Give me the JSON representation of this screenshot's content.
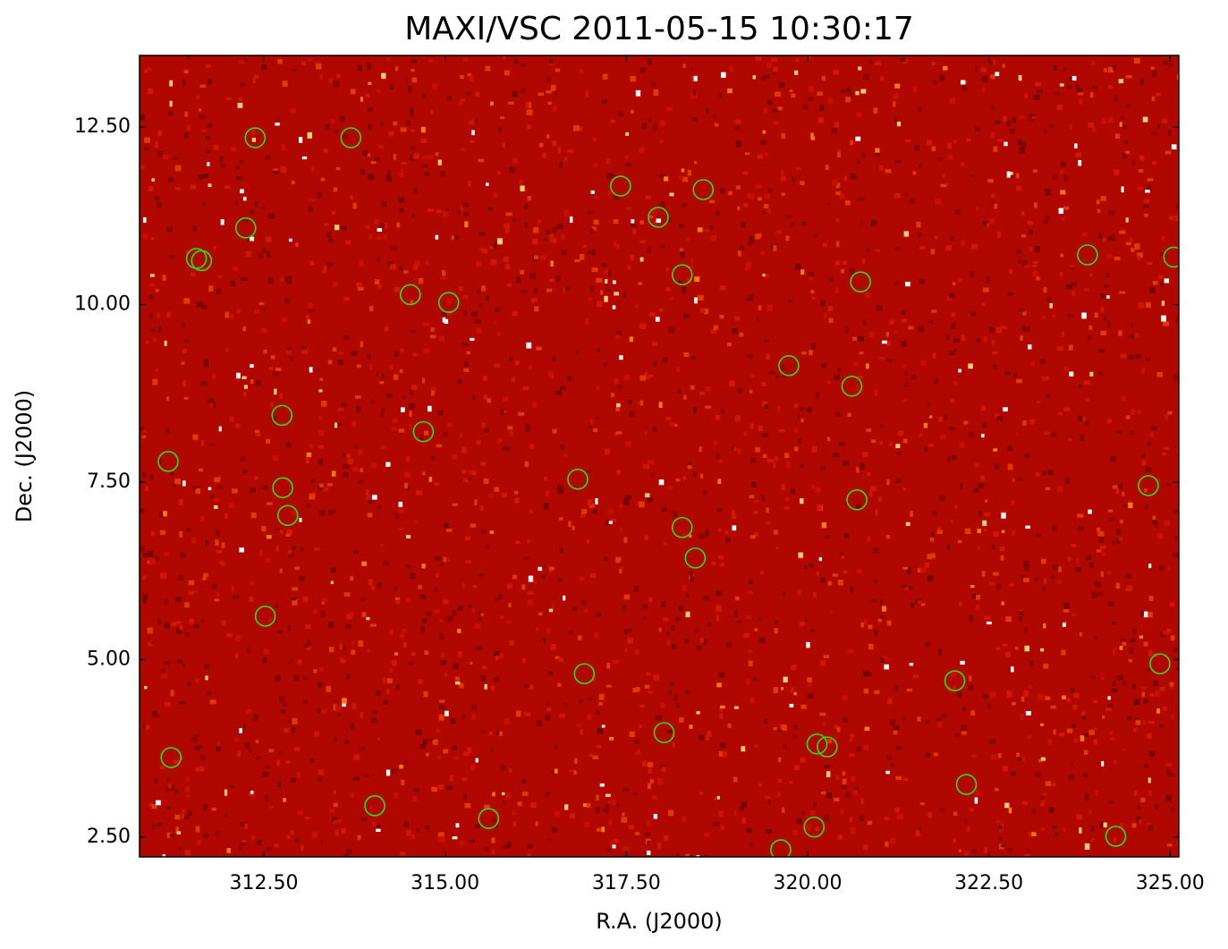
{
  "chart_data": {
    "type": "scatter",
    "title": "MAXI/VSC 2011-05-15 10:30:17",
    "x_label": "R.A. (J2000)",
    "y_label": "Dec. (J2000)",
    "color": "#33dd11",
    "xlim": [
      310.785,
      325.12
    ],
    "ylim": [
      2.22,
      13.51
    ],
    "xticks": [
      {
        "value": 312.5,
        "label": "312.50"
      },
      {
        "value": 315,
        "label": "315.00"
      },
      {
        "value": 317.5,
        "label": "317.50"
      },
      {
        "value": 320,
        "label": "320.00"
      },
      {
        "value": 322.5,
        "label": "322.50"
      },
      {
        "value": 325,
        "label": "325.00"
      }
    ],
    "yticks": [
      {
        "value": 2.5,
        "label": "2.50"
      },
      {
        "value": 5,
        "label": "5.00"
      },
      {
        "value": 7.5,
        "label": "7.50"
      },
      {
        "value": 10,
        "label": "10.00"
      },
      {
        "value": 12.5,
        "label": "12.50"
      }
    ],
    "x": [
      312.38,
      313.7,
      312.25,
      311.57,
      311.64,
      314.52,
      315.05,
      317.42,
      317.94,
      318.56,
      318.27,
      320.73,
      323.86,
      325.05,
      319.74,
      320.61,
      312.75,
      314.7,
      311.18,
      312.76,
      312.83,
      316.83,
      320.68,
      324.7,
      318.27,
      318.45,
      312.52,
      316.92,
      324.86,
      322.03,
      311.22,
      318.02,
      320.13,
      320.27,
      322.19,
      314.03,
      315.6,
      320.09,
      319.63,
      324.25
    ],
    "values": [
      12.35,
      12.35,
      11.08,
      10.65,
      10.62,
      10.14,
      10.03,
      11.67,
      11.23,
      11.62,
      10.42,
      10.32,
      10.7,
      10.67,
      9.14,
      8.85,
      8.44,
      8.21,
      7.79,
      7.42,
      7.03,
      7.54,
      7.25,
      7.45,
      6.86,
      6.43,
      5.61,
      4.8,
      4.94,
      4.7,
      3.62,
      3.97,
      3.81,
      3.77,
      3.24,
      2.94,
      2.76,
      2.64,
      2.32,
      2.51
    ]
  }
}
